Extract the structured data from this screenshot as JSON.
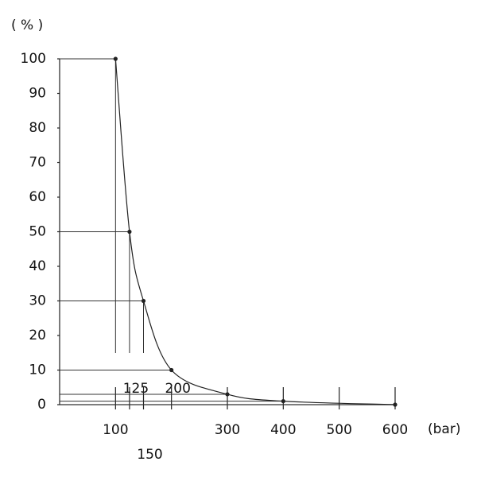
{
  "chart_data": {
    "type": "line",
    "y_label": "( % )",
    "x_label": "(bar)",
    "x": [
      100,
      125,
      150,
      200,
      300,
      400,
      600
    ],
    "series": [
      {
        "color": "#222222",
        "values": [
          100,
          50,
          30,
          10,
          3,
          1,
          0
        ]
      }
    ],
    "xlim": [
      0,
      600
    ],
    "ylim": [
      0,
      100
    ],
    "xticks": [
      100,
      125,
      150,
      200,
      300,
      400,
      500,
      600
    ],
    "yticks": [
      0,
      10,
      20,
      30,
      40,
      50,
      60,
      70,
      80,
      90,
      100
    ],
    "grid": false
  }
}
